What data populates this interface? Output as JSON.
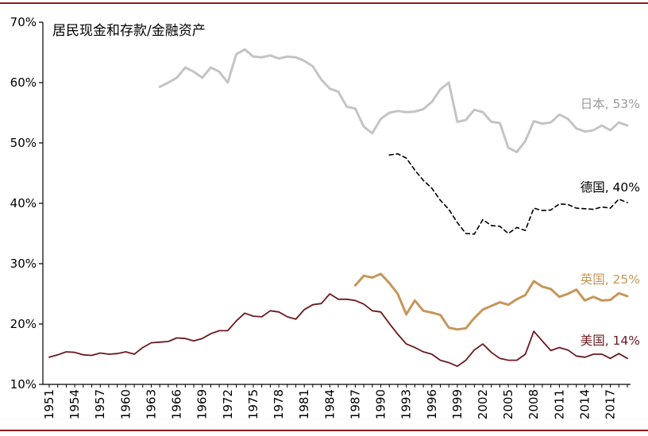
{
  "chart_data": {
    "type": "line",
    "title": "居民现金和存款/金融资产",
    "xlabel": "",
    "ylabel": "",
    "xlim": [
      1951,
      2019
    ],
    "ylim": [
      10,
      70
    ],
    "grid": false,
    "y_ticks": [
      "10%",
      "20%",
      "30%",
      "40%",
      "50%",
      "60%",
      "70%"
    ],
    "y_tick_values": [
      10,
      20,
      30,
      40,
      50,
      60,
      70
    ],
    "x_ticks": [
      "1951",
      "1954",
      "1957",
      "1960",
      "1963",
      "1966",
      "1969",
      "1972",
      "1975",
      "1978",
      "1981",
      "1984",
      "1987",
      "1990",
      "1993",
      "1996",
      "1999",
      "2002",
      "2005",
      "2008",
      "2011",
      "2014",
      "2017"
    ],
    "x_tick_values": [
      1951,
      1954,
      1957,
      1960,
      1963,
      1966,
      1969,
      1972,
      1975,
      1978,
      1981,
      1984,
      1987,
      1990,
      1993,
      1996,
      1999,
      2002,
      2005,
      2008,
      2011,
      2014,
      2017
    ],
    "series": [
      {
        "name": "日本",
        "label": "日本, 53%",
        "color": "#c4c4c4",
        "dash": "solid",
        "x": [
          1964,
          1965,
          1966,
          1967,
          1968,
          1969,
          1970,
          1971,
          1972,
          1973,
          1974,
          1975,
          1976,
          1977,
          1978,
          1979,
          1980,
          1981,
          1982,
          1983,
          1984,
          1985,
          1986,
          1987,
          1988,
          1989,
          1990,
          1991,
          1992,
          1993,
          1994,
          1995,
          1996,
          1997,
          1998,
          1999,
          2000,
          2001,
          2002,
          2003,
          2004,
          2005,
          2006,
          2007,
          2008,
          2009,
          2010,
          2011,
          2012,
          2013,
          2014,
          2015,
          2016,
          2017,
          2018,
          2019
        ],
        "y": [
          59.3,
          60.0,
          60.8,
          62.5,
          61.8,
          60.8,
          62.5,
          61.8,
          60.0,
          64.7,
          65.5,
          64.3,
          64.2,
          64.5,
          64.0,
          64.3,
          64.2,
          63.6,
          62.7,
          60.5,
          59.0,
          58.5,
          56.0,
          55.7,
          52.7,
          51.6,
          54.0,
          55.0,
          55.3,
          55.1,
          55.2,
          55.6,
          56.8,
          58.9,
          60.0,
          53.5,
          53.8,
          55.5,
          55.1,
          53.5,
          53.3,
          49.2,
          48.5,
          50.3,
          53.6,
          53.2,
          53.4,
          54.7,
          54.0,
          52.4,
          51.9,
          52.1,
          52.9,
          52.1,
          53.4,
          52.9
        ]
      },
      {
        "name": "德国",
        "label": "德国, 40%",
        "color": "#000000",
        "dash": "dashed",
        "x": [
          1991,
          1992,
          1993,
          1994,
          1995,
          1996,
          1997,
          1998,
          1999,
          2000,
          2001,
          2002,
          2003,
          2004,
          2005,
          2006,
          2007,
          2008,
          2009,
          2010,
          2011,
          2012,
          2013,
          2014,
          2015,
          2016,
          2017,
          2018,
          2019
        ],
        "y": [
          48.0,
          48.2,
          47.5,
          45.5,
          43.8,
          42.5,
          40.5,
          39.0,
          36.8,
          35.0,
          34.9,
          37.3,
          36.3,
          36.2,
          35.0,
          36.0,
          35.5,
          39.2,
          38.8,
          38.9,
          39.9,
          39.8,
          39.2,
          39.1,
          39.0,
          39.4,
          39.2,
          40.7,
          40.1
        ]
      },
      {
        "name": "英国",
        "label": "英国, 25%",
        "color": "#c5965b",
        "dash": "solid",
        "x": [
          1987,
          1988,
          1989,
          1990,
          1991,
          1992,
          1993,
          1994,
          1995,
          1996,
          1997,
          1998,
          1999,
          2000,
          2001,
          2002,
          2003,
          2004,
          2005,
          2006,
          2007,
          2008,
          2009,
          2010,
          2011,
          2012,
          2013,
          2014,
          2015,
          2016,
          2017,
          2018,
          2019
        ],
        "y": [
          26.4,
          28.0,
          27.7,
          28.3,
          26.8,
          25.0,
          21.6,
          23.9,
          22.2,
          21.9,
          21.5,
          19.4,
          19.1,
          19.3,
          21.0,
          22.4,
          23.0,
          23.6,
          23.2,
          24.1,
          24.8,
          27.1,
          26.2,
          25.8,
          24.5,
          25.0,
          25.7,
          23.9,
          24.5,
          23.9,
          24.0,
          25.1,
          24.6
        ]
      },
      {
        "name": "美国",
        "label": "美国, 14%",
        "color": "#6b1a1f",
        "dash": "solid",
        "x": [
          1951,
          1952,
          1953,
          1954,
          1955,
          1956,
          1957,
          1958,
          1959,
          1960,
          1961,
          1962,
          1963,
          1964,
          1965,
          1966,
          1967,
          1968,
          1969,
          1970,
          1971,
          1972,
          1973,
          1974,
          1975,
          1976,
          1977,
          1978,
          1979,
          1980,
          1981,
          1982,
          1983,
          1984,
          1985,
          1986,
          1987,
          1988,
          1989,
          1990,
          1991,
          1992,
          1993,
          1994,
          1995,
          1996,
          1997,
          1998,
          1999,
          2000,
          2001,
          2002,
          2003,
          2004,
          2005,
          2006,
          2007,
          2008,
          2009,
          2010,
          2011,
          2012,
          2013,
          2014,
          2015,
          2016,
          2017,
          2018,
          2019
        ],
        "y": [
          14.5,
          14.9,
          15.4,
          15.3,
          14.9,
          14.8,
          15.2,
          15.0,
          15.1,
          15.4,
          15.0,
          16.1,
          16.9,
          17.0,
          17.1,
          17.7,
          17.6,
          17.2,
          17.6,
          18.4,
          18.9,
          18.9,
          20.5,
          21.8,
          21.3,
          21.2,
          22.2,
          22.0,
          21.2,
          20.8,
          22.4,
          23.2,
          23.4,
          25.0,
          24.1,
          24.1,
          23.9,
          23.3,
          22.2,
          22.0,
          20.1,
          18.3,
          16.7,
          16.1,
          15.4,
          15.0,
          14.0,
          13.6,
          13.0,
          14.0,
          15.7,
          16.7,
          15.3,
          14.3,
          14.0,
          14.0,
          15.0,
          18.8,
          17.2,
          15.6,
          16.1,
          15.7,
          14.7,
          14.5,
          15.0,
          15.0,
          14.3,
          15.1,
          14.3
        ]
      }
    ]
  }
}
